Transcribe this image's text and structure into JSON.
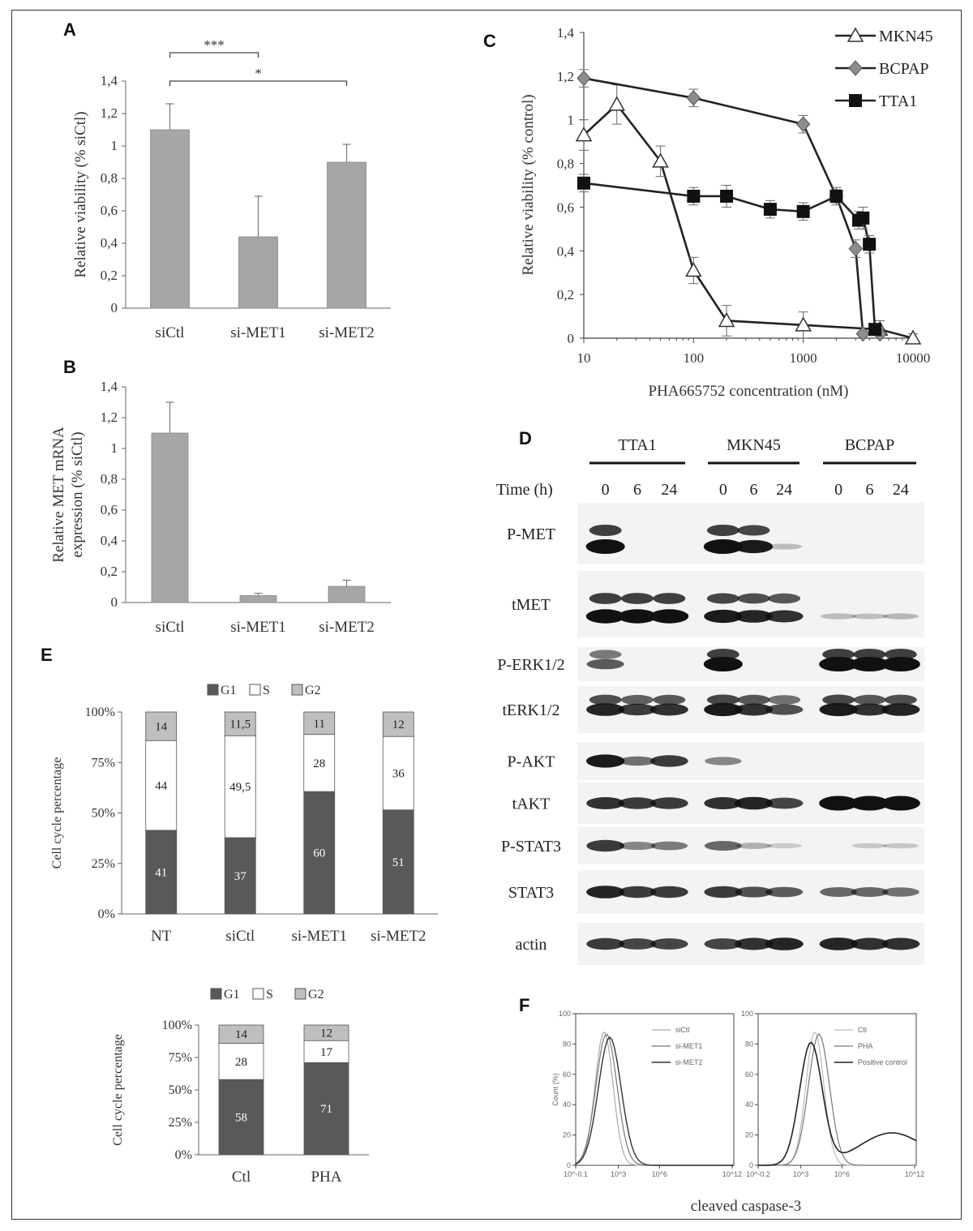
{
  "panel_labels": {
    "A": "A",
    "B": "B",
    "C": "C",
    "D": "D",
    "E": "E",
    "F": "F"
  },
  "chart_data": [
    {
      "id": "A",
      "type": "bar",
      "categories": [
        "siCtl",
        "si-MET1",
        "si-MET2"
      ],
      "values": [
        1.1,
        0.44,
        0.9
      ],
      "errors": [
        0.16,
        0.25,
        0.11
      ],
      "ylabel": "Relative viability (% siCtl)",
      "ylim": [
        0,
        1.4
      ],
      "yticks": [
        "0",
        "0,2",
        "0,4",
        "0,6",
        "0,8",
        "1",
        "1,2",
        "1,4"
      ],
      "significance": [
        {
          "from": "siCtl",
          "to": "si-MET1",
          "label": "***"
        },
        {
          "from": "siCtl",
          "to": "si-MET2",
          "label": "*"
        }
      ],
      "color": "#a6a6a6"
    },
    {
      "id": "B",
      "type": "bar",
      "categories": [
        "siCtl",
        "si-MET1",
        "si-MET2"
      ],
      "values": [
        1.1,
        0.045,
        0.105
      ],
      "errors": [
        0.2,
        0.015,
        0.04
      ],
      "ylabel_lines": [
        "Relative MET mRNA",
        "expression (% siCtl)"
      ],
      "ylim": [
        0,
        1.4
      ],
      "yticks": [
        "0",
        "0,2",
        "0,4",
        "0,6",
        "0,8",
        "1",
        "1,2",
        "1,4"
      ],
      "color": "#a6a6a6"
    },
    {
      "id": "C",
      "type": "line",
      "xscale": "log",
      "xlabel": "PHA665752 concentration (nM)",
      "ylabel": "Relative viability (% control)",
      "xlim": [
        10,
        10000
      ],
      "ylim": [
        0,
        1.4
      ],
      "xticks": [
        "10",
        "100",
        "1000",
        "10000"
      ],
      "yticks": [
        "0",
        "0,2",
        "0,4",
        "0,6",
        "0,8",
        "1",
        "1,2",
        "1,4"
      ],
      "legend_position": "top-right",
      "series": [
        {
          "name": "MKN45",
          "marker": "triangle-open",
          "x": [
            10,
            20,
            50,
            100,
            200,
            1000,
            5000,
            10000
          ],
          "y": [
            0.93,
            1.07,
            0.81,
            0.31,
            0.08,
            0.06,
            0.04,
            0.0
          ],
          "err": [
            0.07,
            0.09,
            0.07,
            0.06,
            0.07,
            0.06,
            0.04,
            0.02
          ]
        },
        {
          "name": "BCPAP",
          "marker": "diamond-gray",
          "x": [
            10,
            100,
            1000,
            2000,
            3000,
            3500,
            5000
          ],
          "y": [
            1.19,
            1.1,
            0.98,
            0.65,
            0.41,
            0.02,
            0.02
          ],
          "err": [
            0.04,
            0.04,
            0.04,
            0.04,
            0.04,
            0.01,
            0.01
          ]
        },
        {
          "name": "TTA1",
          "marker": "square-filled",
          "x": [
            10,
            100,
            200,
            500,
            1000,
            2000,
            3200,
            3500,
            4000,
            4500
          ],
          "y": [
            0.71,
            0.65,
            0.65,
            0.59,
            0.58,
            0.65,
            0.54,
            0.55,
            0.43,
            0.04
          ],
          "err": [
            0.04,
            0.04,
            0.05,
            0.04,
            0.04,
            0.03,
            0.04,
            0.05,
            0.04,
            0.02
          ]
        }
      ]
    },
    {
      "id": "E1",
      "type": "bar",
      "stacked": true,
      "percent": true,
      "categories": [
        "NT",
        "siCtl",
        "si-MET1",
        "si-MET2"
      ],
      "series": [
        {
          "name": "G1",
          "values": [
            41,
            37,
            60,
            51
          ],
          "labels": [
            "41",
            "37",
            "60",
            "51"
          ],
          "color": "#595959"
        },
        {
          "name": "S",
          "values": [
            44,
            49.5,
            28,
            36
          ],
          "labels": [
            "44",
            "49,5",
            "28",
            "36"
          ],
          "color": "#ffffff"
        },
        {
          "name": "G2",
          "values": [
            14,
            11.5,
            11,
            12
          ],
          "labels": [
            "14",
            "11,5",
            "11",
            "12"
          ],
          "color": "#bfbfbf"
        }
      ],
      "ylabel": "Cell cycle percentage",
      "yticks": [
        "0%",
        "25%",
        "50%",
        "75%",
        "100%"
      ],
      "legend_position": "top"
    },
    {
      "id": "E2",
      "type": "bar",
      "stacked": true,
      "percent": true,
      "categories": [
        "Ctl",
        "PHA"
      ],
      "series": [
        {
          "name": "G1",
          "values": [
            58,
            71
          ],
          "labels": [
            "58",
            "71"
          ],
          "color": "#595959"
        },
        {
          "name": "S",
          "values": [
            28,
            17
          ],
          "labels": [
            "28",
            "17"
          ],
          "color": "#ffffff"
        },
        {
          "name": "G2",
          "values": [
            14,
            12
          ],
          "labels": [
            "14",
            "12"
          ],
          "color": "#bfbfbf"
        }
      ],
      "ylabel": "Cell cycle percentage",
      "yticks": [
        "0%",
        "25%",
        "50%",
        "75%",
        "100%"
      ],
      "legend_position": "top"
    },
    {
      "id": "F1",
      "type": "histogram",
      "xscale": "log",
      "ylabel": "Count (%)",
      "yticks": [
        "0",
        "20",
        "40",
        "60",
        "80",
        "100"
      ],
      "xticks": [
        "10^-0.1",
        "10^3",
        "10^6",
        "10^12"
      ],
      "legend": [
        "siCtl",
        "si-MET1",
        "si-MET2"
      ],
      "peaks_log10": [
        2.3,
        2.4,
        2.5
      ]
    },
    {
      "id": "F2",
      "type": "histogram",
      "xscale": "log",
      "yticks": [
        "0",
        "20",
        "40",
        "60",
        "80",
        "100"
      ],
      "xticks": [
        "10^-0.2",
        "10^3",
        "10^6",
        "10^12"
      ],
      "legend": [
        "Ctl",
        "PHA",
        "Positive control"
      ],
      "xlabel": "cleaved caspase-3"
    }
  ],
  "blot": {
    "groups": [
      "TTA1",
      "MKN45",
      "BCPAP"
    ],
    "time_label": "Time (h)",
    "times": [
      "0",
      "6",
      "24",
      "0",
      "6",
      "24",
      "0",
      "6",
      "24"
    ],
    "rows": [
      {
        "label": "P-MET",
        "intensity": [
          1.0,
          0.0,
          0.0,
          1.0,
          0.85,
          0.1,
          0.0,
          0.0,
          0.0
        ]
      },
      {
        "label": "tMET",
        "intensity": [
          0.95,
          0.95,
          0.95,
          0.85,
          0.8,
          0.75,
          0.1,
          0.08,
          0.12
        ]
      },
      {
        "label": "P-ERK1/2",
        "intensity": [
          0.55,
          0.0,
          0.0,
          1.0,
          0.0,
          0.0,
          1.0,
          1.0,
          1.0
        ]
      },
      {
        "label": "tERK1/2",
        "intensity": [
          0.8,
          0.7,
          0.75,
          0.85,
          0.75,
          0.6,
          0.85,
          0.75,
          0.8
        ]
      },
      {
        "label": "P-AKT",
        "intensity": [
          0.85,
          0.45,
          0.7,
          0.35,
          0.0,
          0.0,
          0.0,
          0.0,
          0.0
        ]
      },
      {
        "label": "tAKT",
        "intensity": [
          0.75,
          0.7,
          0.7,
          0.75,
          0.8,
          0.65,
          1.0,
          1.0,
          1.0
        ]
      },
      {
        "label": "P-STAT3",
        "intensity": [
          0.7,
          0.35,
          0.4,
          0.5,
          0.15,
          0.03,
          0.0,
          0.04,
          0.05
        ]
      },
      {
        "label": "STAT3",
        "intensity": [
          0.8,
          0.7,
          0.7,
          0.7,
          0.6,
          0.55,
          0.5,
          0.5,
          0.45
        ]
      },
      {
        "label": "actin",
        "intensity": [
          0.7,
          0.65,
          0.65,
          0.65,
          0.75,
          0.8,
          0.8,
          0.75,
          0.75
        ]
      }
    ]
  }
}
